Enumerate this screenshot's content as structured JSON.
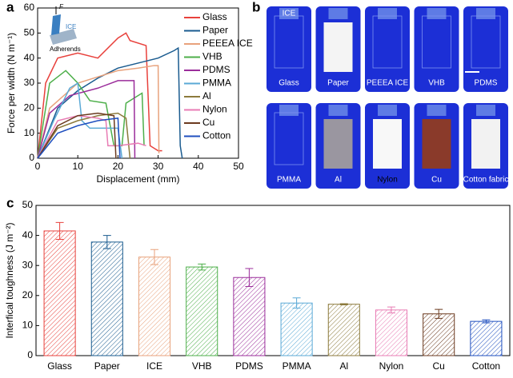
{
  "chart_data": [
    {
      "type": "line",
      "panel_label": "a",
      "xlabel": "Displacement (mm)",
      "ylabel": "Force per width (N m⁻¹)",
      "xlim": [
        0,
        50
      ],
      "ylim": [
        0,
        60
      ],
      "xticks": [
        0,
        10,
        20,
        30,
        40,
        50
      ],
      "yticks": [
        0,
        10,
        20,
        30,
        40,
        50,
        60
      ],
      "annotations": [
        "F",
        "ICE",
        "Adherends"
      ],
      "series": [
        {
          "name": "Glass",
          "color": "#e8413c",
          "x": [
            0,
            2,
            5,
            10,
            15,
            20,
            22,
            23,
            27,
            28,
            30,
            31
          ],
          "values": [
            0,
            30,
            40,
            42,
            40,
            48,
            50,
            47,
            45,
            5,
            3,
            3
          ]
        },
        {
          "name": "Paper",
          "color": "#1a5b8f",
          "x": [
            0,
            5,
            10,
            15,
            20,
            25,
            30,
            34,
            35,
            35.5,
            36
          ],
          "values": [
            0,
            20,
            27,
            32,
            36,
            38,
            40,
            43,
            44,
            5,
            0
          ]
        },
        {
          "name": "PEEEA ICE",
          "color": "#e8a27c",
          "x": [
            0,
            3,
            10,
            20,
            25,
            29,
            30,
            30.2
          ],
          "values": [
            0,
            20,
            30,
            35,
            36,
            37,
            37,
            2
          ]
        },
        {
          "name": "VHB",
          "color": "#4daf4a",
          "x": [
            0,
            3,
            7,
            10,
            13,
            17,
            19,
            21,
            22,
            26,
            26.5
          ],
          "values": [
            0,
            30,
            35,
            30,
            23,
            22,
            5,
            5,
            22,
            26,
            5
          ]
        },
        {
          "name": "PDMS",
          "color": "#9b2d9b",
          "x": [
            0,
            3,
            8,
            15,
            20,
            24,
            24.2
          ],
          "values": [
            0,
            18,
            25,
            28,
            31,
            31,
            0
          ]
        },
        {
          "name": "PMMA",
          "color": "#5aa9d6",
          "x": [
            0,
            4,
            8,
            10,
            11,
            13,
            15,
            20,
            21
          ],
          "values": [
            0,
            15,
            28,
            30,
            15,
            12,
            12,
            12,
            0
          ]
        },
        {
          "name": "Al",
          "color": "#8c7a3c",
          "x": [
            0,
            5,
            10,
            15,
            20,
            22,
            23
          ],
          "values": [
            0,
            12,
            15,
            17,
            18,
            16,
            0
          ]
        },
        {
          "name": "Nylon",
          "color": "#e87cb4",
          "x": [
            0,
            5,
            10,
            15,
            17,
            17.5,
            20,
            25,
            27
          ],
          "values": [
            0,
            15,
            17,
            16,
            15,
            5,
            5,
            6,
            5
          ]
        },
        {
          "name": "Cu",
          "color": "#6b3a1f",
          "x": [
            0,
            5,
            10,
            15,
            19,
            19.5
          ],
          "values": [
            0,
            13,
            17,
            18,
            17,
            0
          ]
        },
        {
          "name": "Cotton",
          "color": "#1f4fbf",
          "x": [
            0,
            5,
            10,
            15,
            20,
            20.5
          ],
          "values": [
            0,
            10,
            13,
            15,
            16,
            0
          ]
        }
      ]
    },
    {
      "type": "bar",
      "panel_label": "c",
      "ylabel": "Interfical toughness (J m⁻²)",
      "ylim": [
        0,
        50
      ],
      "yticks": [
        0,
        10,
        20,
        30,
        40,
        50
      ],
      "categories": [
        "Glass",
        "Paper",
        "ICE",
        "VHB",
        "PDMS",
        "PMMA",
        "Al",
        "Nylon",
        "Cu",
        "Cotton"
      ],
      "values": [
        41.5,
        37.8,
        32.8,
        29.5,
        26,
        17.5,
        17.1,
        15.2,
        13.9,
        11.4
      ],
      "errors": [
        2.8,
        2.2,
        2.5,
        1,
        3,
        1.7,
        0.2,
        1,
        1.5,
        0.5
      ],
      "colors": [
        "#e8413c",
        "#1a5b8f",
        "#e8a27c",
        "#4daf4a",
        "#9b2d9b",
        "#5aa9d6",
        "#8c7a3c",
        "#e87cb4",
        "#6b3a1f",
        "#1f4fbf"
      ]
    }
  ],
  "photo_panel": {
    "panel_label": "b",
    "top_label": "ICE",
    "tiles": [
      "Glass",
      "Paper",
      "PEEEA ICE",
      "VHB",
      "PDMS",
      "PMMA",
      "Al",
      "Nylon",
      "Cu",
      "Cotton fabric"
    ]
  }
}
